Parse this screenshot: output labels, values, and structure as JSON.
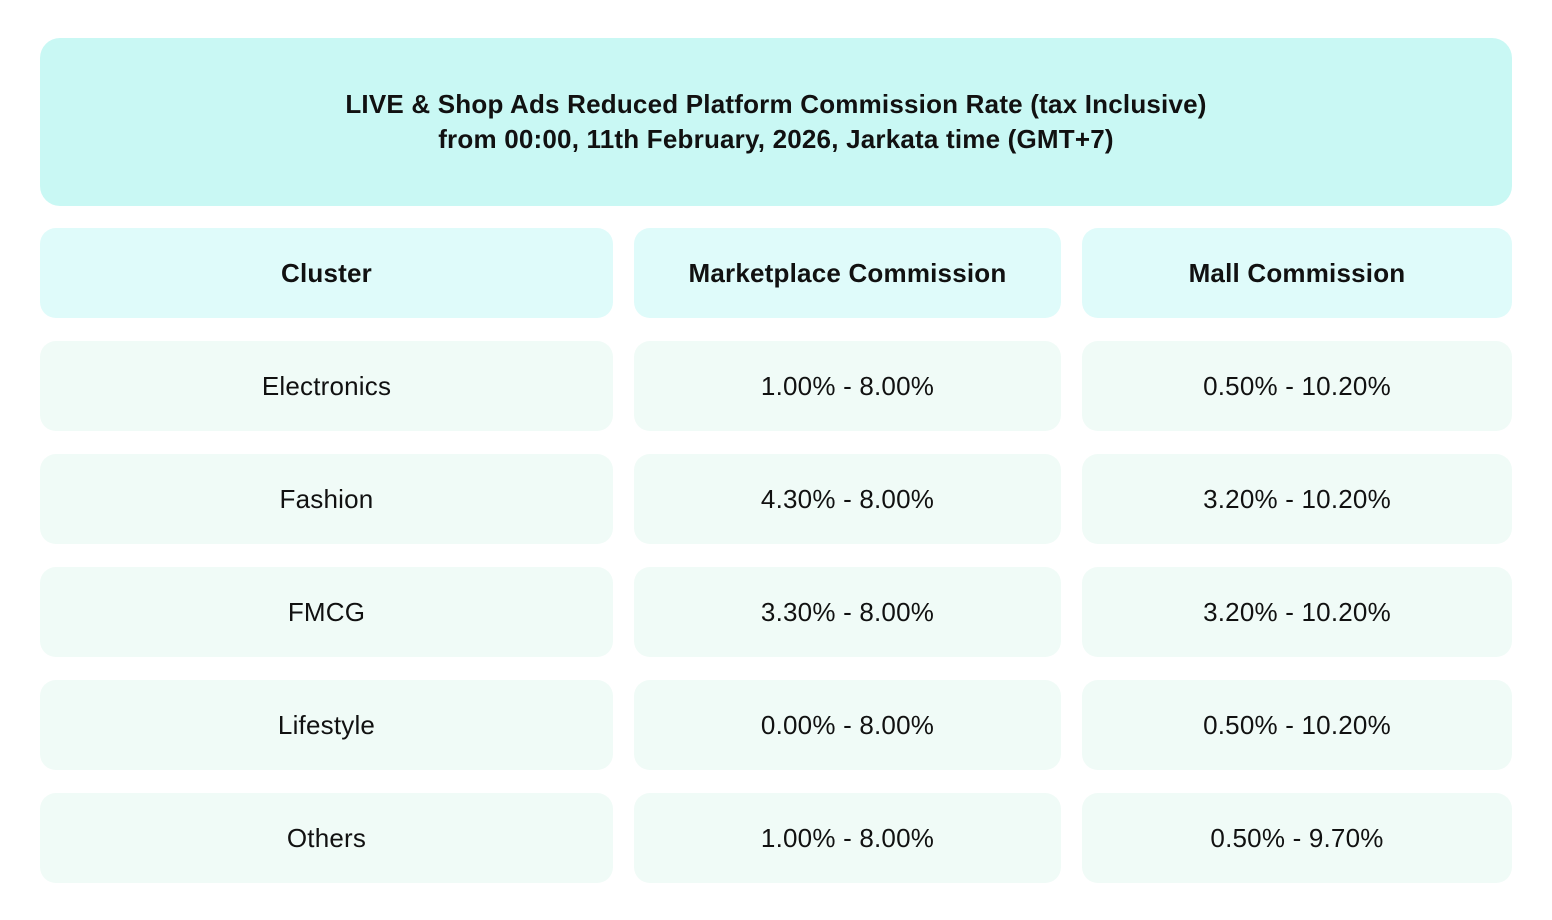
{
  "banner": {
    "title_line1": "LIVE & Shop Ads Reduced Platform Commission Rate (tax Inclusive)",
    "title_line2": "from 00:00, 11th February, 2026, Jarkata time (GMT+7)"
  },
  "table": {
    "columns": [
      "Cluster",
      "Marketplace Commission",
      "Mall Commission"
    ],
    "rows": [
      {
        "cluster": "Electronics",
        "marketplace_commission": "1.00% - 8.00%",
        "mall_commission": "0.50% - 10.20%"
      },
      {
        "cluster": "Fashion",
        "marketplace_commission": "4.30% - 8.00%",
        "mall_commission": "3.20% - 10.20%"
      },
      {
        "cluster": "FMCG",
        "marketplace_commission": "3.30% - 8.00%",
        "mall_commission": "3.20% - 10.20%"
      },
      {
        "cluster": "Lifestyle",
        "marketplace_commission": "0.00% - 8.00%",
        "mall_commission": "0.50% - 10.20%"
      },
      {
        "cluster": "Others",
        "marketplace_commission": "1.00% - 8.00%",
        "mall_commission": "0.50% - 9.70%"
      }
    ]
  },
  "colors": {
    "page_bg": "#ffffff",
    "banner_bg": "#c9f8f4",
    "header_cell_bg": "#dffbfa",
    "data_cell_bg": "#f0fbf7",
    "text": "#111111"
  }
}
